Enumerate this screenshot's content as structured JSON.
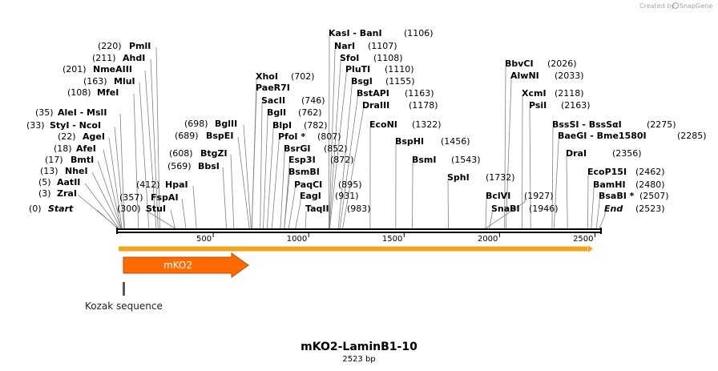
{
  "credit": {
    "created_by": "Created by",
    "brand": "SnapGene"
  },
  "map": {
    "name": "mKO2-LaminB1-10",
    "length_label": "2523 bp",
    "length": 2523,
    "ticks": [
      "500",
      "1000",
      "1500",
      "2000",
      "2500"
    ],
    "colors": {
      "feature": "#ff6a00",
      "orf": "#f2a41f",
      "backbone": "#000000",
      "connector": "#808080"
    }
  },
  "sites": [
    {
      "name": "Start",
      "pos": "(0)",
      "bp": 0,
      "italic": true
    },
    {
      "name": "ZraI",
      "pos": "(3)",
      "bp": 3
    },
    {
      "name": "AatII",
      "pos": "(5)",
      "bp": 5
    },
    {
      "name": "NheI",
      "pos": "(13)",
      "bp": 13
    },
    {
      "name": "BmtI",
      "pos": "(17)",
      "bp": 17
    },
    {
      "name": "AfeI",
      "pos": "(18)",
      "bp": 18
    },
    {
      "name": "AgeI",
      "pos": "(22)",
      "bp": 22
    },
    {
      "name": "StyI - NcoI",
      "pos": "(33)",
      "bp": 33
    },
    {
      "name": "AleI - MslI",
      "pos": "(35)",
      "bp": 35
    },
    {
      "name": "MfeI",
      "pos": "(108)",
      "bp": 108
    },
    {
      "name": "MluI",
      "pos": "(163)",
      "bp": 163
    },
    {
      "name": "NmeAIII",
      "pos": "(201)",
      "bp": 201
    },
    {
      "name": "AhdI",
      "pos": "(211)",
      "bp": 211
    },
    {
      "name": "PmlI",
      "pos": "(220)",
      "bp": 220
    },
    {
      "name": "",
      "pos": "(300)",
      "bp": 300
    },
    {
      "name": "StuI",
      "pos": "",
      "bp": 300
    },
    {
      "name": "FspAI",
      "pos": "(357)",
      "bp": 357
    },
    {
      "name": "HpaI",
      "pos": "(412)",
      "bp": 412
    },
    {
      "name": "BbsI",
      "pos": "(569)",
      "bp": 569
    },
    {
      "name": "BtgZI",
      "pos": "(608)",
      "bp": 608
    },
    {
      "name": "BspEI",
      "pos": "(689)",
      "bp": 689
    },
    {
      "name": "BglII",
      "pos": "(698)",
      "bp": 698
    },
    {
      "name": "XhoI",
      "pos": "(702)",
      "bp": 702
    },
    {
      "name": "PaeR7I",
      "pos": "",
      "bp": 702
    },
    {
      "name": "SacII",
      "pos": "(746)",
      "bp": 746
    },
    {
      "name": "BglI",
      "pos": "(762)",
      "bp": 762
    },
    {
      "name": "BlpI",
      "pos": "(782)",
      "bp": 782
    },
    {
      "name": "PfoI *",
      "pos": "(807)",
      "bp": 807
    },
    {
      "name": "BsrGI",
      "pos": "(852)",
      "bp": 852
    },
    {
      "name": "Esp3I",
      "pos": "(872)",
      "bp": 872
    },
    {
      "name": "BsmBI",
      "pos": "",
      "bp": 872
    },
    {
      "name": "PaqCI",
      "pos": "(895)",
      "bp": 895
    },
    {
      "name": "EagI",
      "pos": "(931)",
      "bp": 931
    },
    {
      "name": "TaqII",
      "pos": "(983)",
      "bp": 983
    },
    {
      "name": "KasI - BanI",
      "pos": "(1106)",
      "bp": 1106
    },
    {
      "name": "NarI",
      "pos": "(1107)",
      "bp": 1107
    },
    {
      "name": "SfoI",
      "pos": "(1108)",
      "bp": 1108
    },
    {
      "name": "PluTI",
      "pos": "(1110)",
      "bp": 1110
    },
    {
      "name": "BsgI",
      "pos": "(1155)",
      "bp": 1155
    },
    {
      "name": "BstAPI",
      "pos": "(1163)",
      "bp": 1163
    },
    {
      "name": "DraIII",
      "pos": "(1178)",
      "bp": 1178
    },
    {
      "name": "EcoNI",
      "pos": "(1322)",
      "bp": 1322
    },
    {
      "name": "BspHI",
      "pos": "(1456)",
      "bp": 1456
    },
    {
      "name": "BsmI",
      "pos": "(1543)",
      "bp": 1543
    },
    {
      "name": "SphI",
      "pos": "(1732)",
      "bp": 1732
    },
    {
      "name": "BclVI",
      "pos": "",
      "bp": 1927
    },
    {
      "name": "SnaBI",
      "pos": "(1946)",
      "bp": 1946
    },
    {
      "name": "BbvCI",
      "pos": "(2026)",
      "bp": 2026
    },
    {
      "name": "AlwNI",
      "pos": "(2033)",
      "bp": 2033
    },
    {
      "name": "XcmI",
      "pos": "(2118)",
      "bp": 2118
    },
    {
      "name": "PsiI",
      "pos": "(2163)",
      "bp": 2163
    },
    {
      "name": "",
      "pos": "(1927)",
      "bp": 1927
    },
    {
      "name": "BssSI - BssSαI",
      "pos": "(2275)",
      "bp": 2275
    },
    {
      "name": "BaeGI - Bme1580I",
      "pos": "(2285)",
      "bp": 2285
    },
    {
      "name": "DraI",
      "pos": "(2356)",
      "bp": 2356
    },
    {
      "name": "EcoP15I",
      "pos": "(2462)",
      "bp": 2462
    },
    {
      "name": "BamHI",
      "pos": "(2480)",
      "bp": 2480
    },
    {
      "name": "BsaBI *",
      "pos": "(2507)",
      "bp": 2507
    },
    {
      "name": "End",
      "pos": "(2523)",
      "bp": 2523,
      "italic": true
    }
  ],
  "features": [
    {
      "name": "mKO2",
      "start": 30,
      "end": 690
    },
    {
      "name": "Kozak sequence",
      "start": 20,
      "end": 30
    }
  ]
}
